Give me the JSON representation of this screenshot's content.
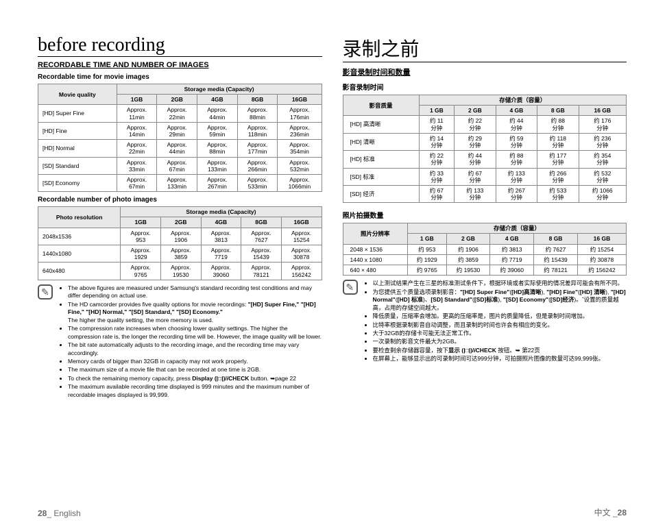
{
  "left": {
    "title": "before recording",
    "section": "RECORDABLE TIME AND NUMBER OF IMAGES",
    "sub1": "Recordable time for movie images",
    "movie": {
      "corner": "Movie quality",
      "header": "Storage media (Capacity)",
      "caps": [
        "1GB",
        "2GB",
        "4GB",
        "8GB",
        "16GB"
      ],
      "rows": [
        {
          "label": "[HD] Super Fine",
          "vals": [
            "Approx. 11min",
            "Approx. 22min",
            "Approx. 44min",
            "Approx. 88min",
            "Approx. 176min"
          ]
        },
        {
          "label": "[HD] Fine",
          "vals": [
            "Approx. 14min",
            "Approx. 29min",
            "Approx. 59min",
            "Approx. 118min",
            "Approx. 236min"
          ]
        },
        {
          "label": "[HD] Normal",
          "vals": [
            "Approx. 22min",
            "Approx. 44min",
            "Approx. 88min",
            "Approx. 177min",
            "Approx. 354min"
          ]
        },
        {
          "label": "[SD] Standard",
          "vals": [
            "Approx. 33min",
            "Approx. 67min",
            "Approx. 133min",
            "Approx. 266min",
            "Approx. 532min"
          ]
        },
        {
          "label": "[SD] Economy",
          "vals": [
            "Approx. 67min",
            "Approx. 133min",
            "Approx. 267min",
            "Approx. 533min",
            "Approx. 1066min"
          ]
        }
      ]
    },
    "sub2": "Recordable number of photo images",
    "photo": {
      "corner": "Photo resolution",
      "header": "Storage media (Capacity)",
      "caps": [
        "1GB",
        "2GB",
        "4GB",
        "8GB",
        "16GB"
      ],
      "rows": [
        {
          "label": "2048x1536",
          "vals": [
            "Approx. 953",
            "Approx. 1906",
            "Approx. 3813",
            "Approx. 7627",
            "Approx. 15254"
          ]
        },
        {
          "label": "1440x1080",
          "vals": [
            "Approx. 1929",
            "Approx. 3859",
            "Approx. 7719",
            "Approx. 15439",
            "Approx. 30878"
          ]
        },
        {
          "label": "640x480",
          "vals": [
            "Approx. 9765",
            "Approx. 19530",
            "Approx. 39060",
            "Approx. 78121",
            "Approx. 156242"
          ]
        }
      ]
    },
    "notes": [
      "The above figures are measured under Samsung's standard recording test conditions and may differ depending on actual use.",
      "The HD camcorder provides five quality options for movie recordings: <b>\"[HD] Super Fine,\" \"[HD] Fine,\" \"[HD] Normal,\" \"[SD] Standard,\" \"[SD] Economy.\"</b><br>The higher the quality setting, the more memory is used.",
      "The compression rate increases when choosing lower quality settings. The higher the compression rate is, the longer the recording time will be. However, the image quality will be lower.",
      "The bit rate automatically adjusts to the recording image, and the recording time may vary accordingly.",
      "Memory cards of bigger than 32GB in capacity may not work properly.",
      "The maximum size of a movie file that can be recorded at one time is 2GB.",
      "To check the remaining memory capacity, press <b>Display (|□|)/<i>i</i>CHECK</b> button. ➥page 22",
      "The maximum available recording time displayed is 999 minutes and the maximum number of recordable images displayed is 99,999."
    ],
    "footer_page": "28",
    "footer_lang": "_ English"
  },
  "right": {
    "title": "录制之前",
    "section": "影音录制时间和数量",
    "sub1": "影音录制时间",
    "movie": {
      "corner": "影音质量",
      "header": "存储介质（容量）",
      "caps": [
        "1 GB",
        "2 GB",
        "4 GB",
        "8 GB",
        "16 GB"
      ],
      "rows": [
        {
          "label": "[HD]  高清晰",
          "vals": [
            "约 11 分钟",
            "约 22 分钟",
            "约 44 分钟",
            "约  88 分钟",
            "约 176 分钟"
          ]
        },
        {
          "label": "[HD]  清晰",
          "vals": [
            "约 14 分钟",
            "约 29 分钟",
            "约 59 分钟",
            "约 118 分钟",
            "约 236 分钟"
          ]
        },
        {
          "label": "[HD]  标准",
          "vals": [
            "约 22 分钟",
            "约 44 分钟",
            "约 88 分钟",
            "约 177 分钟",
            "约 354 分钟"
          ]
        },
        {
          "label": "[SD]  标准",
          "vals": [
            "约 33 分钟",
            "约 67 分钟",
            "约 133 分钟",
            "约 266 分钟",
            "约 532 分钟"
          ]
        },
        {
          "label": "[SD]  经济",
          "vals": [
            "约 67 分钟",
            "约 133 分钟",
            "约 267 分钟",
            "约 533 分钟",
            "约 1066 分钟"
          ]
        }
      ]
    },
    "sub2": "照片拍摄数量",
    "photo": {
      "corner": "照片分辨率",
      "header": "存储介质（容量）",
      "caps": [
        "1 GB",
        "2 GB",
        "4 GB",
        "8 GB",
        "16 GB"
      ],
      "rows": [
        {
          "label": "2048 × 1536",
          "vals": [
            "约 953",
            "约 1906",
            "约 3813",
            "约 7627",
            "约  15254"
          ]
        },
        {
          "label": "1440 x 1080",
          "vals": [
            "约 1929",
            "约 3859",
            "约 7719",
            "约 15439",
            "约  30878"
          ]
        },
        {
          "label": "640 × 480",
          "vals": [
            "约 9765",
            "约 19530",
            "约 39060",
            "约 78121",
            "约  156242"
          ]
        }
      ]
    },
    "notes": [
      "以上测试结果产生在三星的标准测试条件下，根据环境或者实际使用的情况差异可能会有所不同。",
      "为您提供五个质量选项录制影音：<b>\"[HD] Super Fine\"</b>(<b>[HD]高清晰</b>), <b>\"[HD] Fine\"</b>(<b>[HD] 清晰</b>), <b>\"[HD] Normal\"</b>(<b>[HD] 标准</b>)、<b>[SD] Standard\"</b>(<b>[SD]标准</b>), <b>\"[SD] Economy\"</b>(<b>[SD]经济</b>)。˝设置的质量越高，占用的存储空间越大。",
      "降低质量，压缩率会增加。更高的压缩率是，图片的质量降低，但是录制时间增加。",
      "比特率根据录制影音自动调整，而且录制的时间也许会有相应的变化。",
      "大于32GB的存储卡可能无法正常工作。",
      "一次录制的影音文件最大为2GB。",
      "要检查剩余存储器容量，按下<b>显示 (|□|)/<i>i</i>CHECK</b> 按钮。➥ 第22页",
      "在屏幕上，能够显示出的可录制时间可达999分钟，可拍摄照片图像的数量可达99,999张。"
    ],
    "footer_lang": "中文 _",
    "footer_page": "28"
  }
}
